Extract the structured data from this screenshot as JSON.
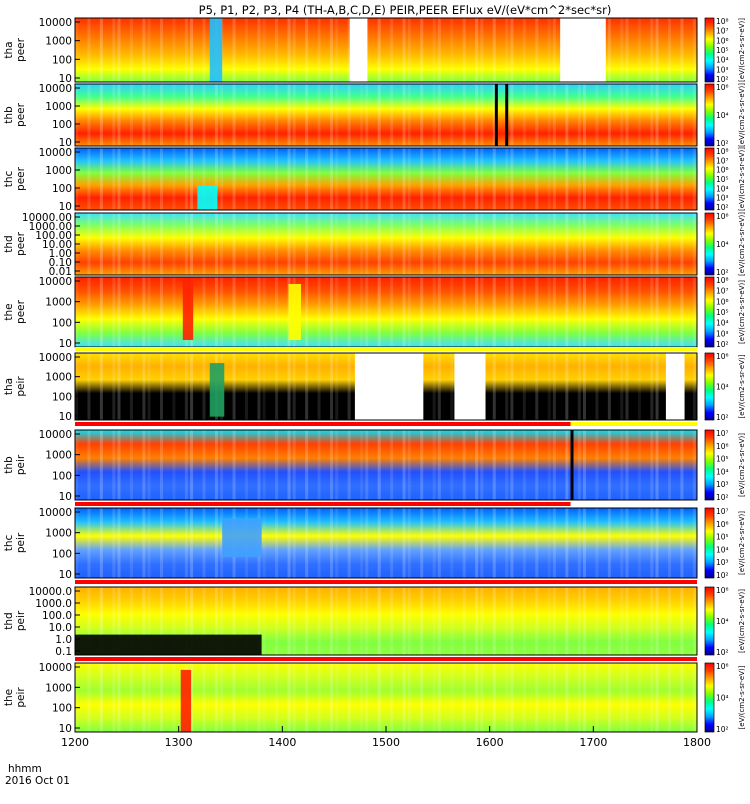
{
  "title": "P5, P1, P2, P3, P4 (TH-A,B,C,D,E) PEIR,PEER EFlux eV/(eV*cm^2*sec*sr)",
  "time_axis": {
    "label_line1": "hhmm",
    "label_line2": "2016 Oct 01",
    "ticks": [
      "1200",
      "1300",
      "1400",
      "1500",
      "1600",
      "1700",
      "1800"
    ]
  },
  "colorbar_label": "[eV/(cm2-s-sr-eV)]",
  "colors": {
    "spectrum": [
      "#000088",
      "#0000ff",
      "#00a0ff",
      "#00ffff",
      "#00ff80",
      "#80ff00",
      "#ffff00",
      "#ffa000",
      "#ff4000",
      "#ff0000"
    ],
    "gap": "#ffffff",
    "fill_black": "#000000",
    "red_bar": "#ff0000",
    "yellow_bar": "#ffff00"
  },
  "chart_data": {
    "type": "heatmap",
    "x_range": [
      "1200",
      "1800"
    ],
    "panels": [
      {
        "label": "tha\npeer",
        "yticks": [
          "10",
          "100",
          "1000",
          "10000"
        ],
        "cbar_ticks": [
          "10^2",
          "10^3",
          "10^4",
          "10^5",
          "10^6",
          "10^7",
          "10^8"
        ]
      },
      {
        "label": "thb\npeer",
        "yticks": [
          "10",
          "100",
          "1000",
          "10000"
        ],
        "cbar_ticks": [
          "10^2",
          "10^4",
          "10^6"
        ]
      },
      {
        "label": "thc\npeer",
        "yticks": [
          "10",
          "100",
          "1000",
          "10000"
        ],
        "cbar_ticks": [
          "10^2",
          "10^3",
          "10^4",
          "10^5",
          "10^6",
          "10^7",
          "10^8"
        ]
      },
      {
        "label": "thd\npeer",
        "yticks": [
          "0.01",
          "0.10",
          "1.00",
          "10.00",
          "100.00",
          "1000.00",
          "10000.00"
        ],
        "cbar_ticks": [
          "10^2",
          "10^4",
          "10^6"
        ]
      },
      {
        "label": "the\npeer",
        "yticks": [
          "10",
          "100",
          "1000",
          "10000"
        ],
        "cbar_ticks": [
          "10^2",
          "10^3",
          "10^4",
          "10^5",
          "10^6",
          "10^7",
          "10^8"
        ]
      },
      {
        "label": "tha\npeir",
        "yticks": [
          "10",
          "100",
          "1000",
          "10000"
        ],
        "cbar_ticks": [
          "10^2",
          "10^4",
          "10^6"
        ]
      },
      {
        "label": "thb\npeir",
        "yticks": [
          "10",
          "100",
          "1000",
          "10000"
        ],
        "cbar_ticks": [
          "10^2",
          "10^3",
          "10^4",
          "10^5",
          "10^6",
          "10^7"
        ]
      },
      {
        "label": "thc\npeir",
        "yticks": [
          "10",
          "100",
          "1000",
          "10000"
        ],
        "cbar_ticks": [
          "10^2",
          "10^3",
          "10^4",
          "10^5",
          "10^6",
          "10^7"
        ]
      },
      {
        "label": "thd\npeir",
        "yticks": [
          "0.1",
          "1.0",
          "10.0",
          "100.0",
          "1000.0",
          "10000.0"
        ],
        "cbar_ticks": [
          "10^2",
          "10^4",
          "10^6"
        ]
      },
      {
        "label": "the\npeir",
        "yticks": [
          "10",
          "100",
          "1000",
          "10000"
        ],
        "cbar_ticks": [
          "10^2",
          "10^4",
          "10^6"
        ]
      }
    ]
  }
}
